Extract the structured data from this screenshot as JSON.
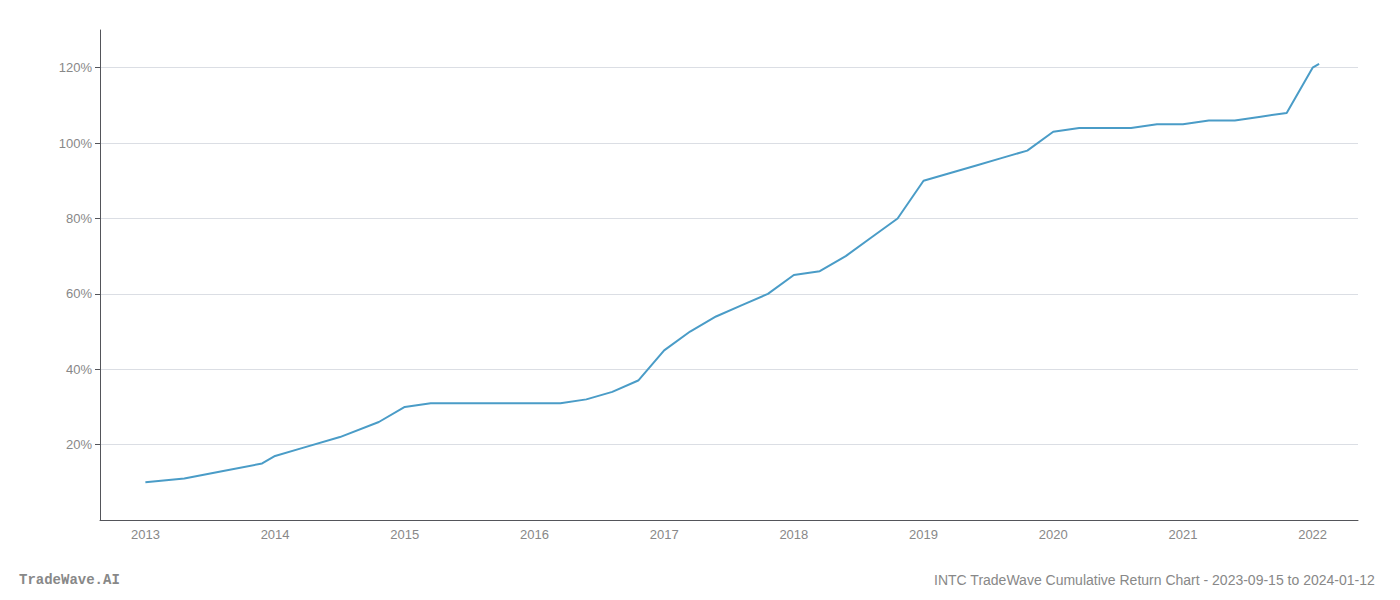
{
  "chart_data": {
    "type": "line",
    "title": "INTC TradeWave Cumulative Return Chart - 2023-09-15 to 2024-01-12",
    "annotations": [
      "TradeWave.AI"
    ],
    "color": "#4a9cc7",
    "grid": true,
    "x": [
      2013.0,
      2013.3,
      2013.6,
      2013.9,
      2014.0,
      2014.2,
      2014.5,
      2014.8,
      2015.0,
      2015.2,
      2015.4,
      2015.6,
      2015.8,
      2016.0,
      2016.2,
      2016.4,
      2016.6,
      2016.8,
      2017.0,
      2017.2,
      2017.4,
      2017.6,
      2017.8,
      2018.0,
      2018.2,
      2018.4,
      2018.6,
      2018.8,
      2019.0,
      2019.2,
      2019.4,
      2019.6,
      2019.8,
      2020.0,
      2020.2,
      2020.4,
      2020.6,
      2020.8,
      2021.0,
      2021.2,
      2021.4,
      2021.6,
      2021.8,
      2022.0,
      2022.05
    ],
    "values": [
      10,
      11,
      13,
      15,
      17,
      19,
      22,
      26,
      30,
      31,
      31,
      31,
      31,
      31,
      31,
      32,
      34,
      37,
      45,
      50,
      54,
      57,
      60,
      65,
      66,
      70,
      75,
      80,
      90,
      92,
      94,
      96,
      98,
      103,
      104,
      104,
      104,
      105,
      105,
      106,
      106,
      107,
      108,
      120,
      121
    ],
    "xlim": [
      2012.65,
      2022.35
    ],
    "ylim": [
      0,
      130
    ],
    "xticks": [
      2013,
      2014,
      2015,
      2016,
      2017,
      2018,
      2019,
      2020,
      2021,
      2022
    ],
    "yticks": [
      {
        "value": 20,
        "label": "20%"
      },
      {
        "value": 40,
        "label": "40%"
      },
      {
        "value": 60,
        "label": "60%"
      },
      {
        "value": 80,
        "label": "80%"
      },
      {
        "value": 100,
        "label": "100%"
      },
      {
        "value": 120,
        "label": "120%"
      }
    ]
  }
}
